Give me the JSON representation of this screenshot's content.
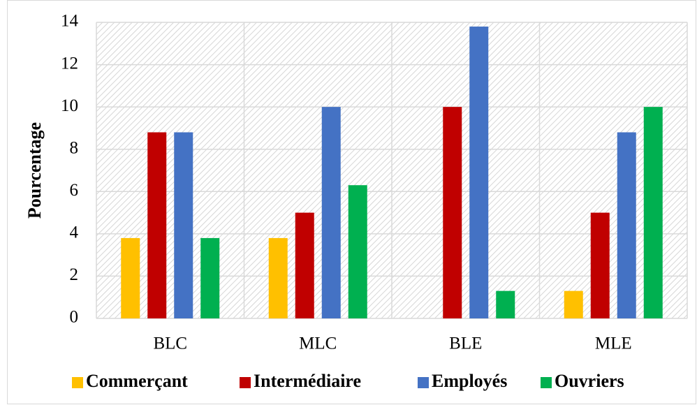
{
  "chart_data": {
    "type": "bar",
    "ylabel": "Pourcentage",
    "categories": [
      "BLC",
      "MLC",
      "BLE",
      "MLE"
    ],
    "series": [
      {
        "name": "Commerçant",
        "color": "#FFC000",
        "values": [
          3.8,
          3.8,
          0,
          1.3
        ]
      },
      {
        "name": "Intermédiaire",
        "color": "#C00000",
        "values": [
          8.8,
          5,
          10,
          5
        ]
      },
      {
        "name": "Employés",
        "color": "#4472C4",
        "values": [
          8.8,
          10,
          13.8,
          8.8
        ]
      },
      {
        "name": "Ouvriers",
        "color": "#00B050",
        "values": [
          3.8,
          6.3,
          1.3,
          10
        ]
      }
    ],
    "ylim": [
      0,
      14
    ],
    "yticks": [
      0,
      2,
      4,
      6,
      8,
      10,
      12,
      14
    ],
    "grid": true,
    "legend": "bottom"
  }
}
